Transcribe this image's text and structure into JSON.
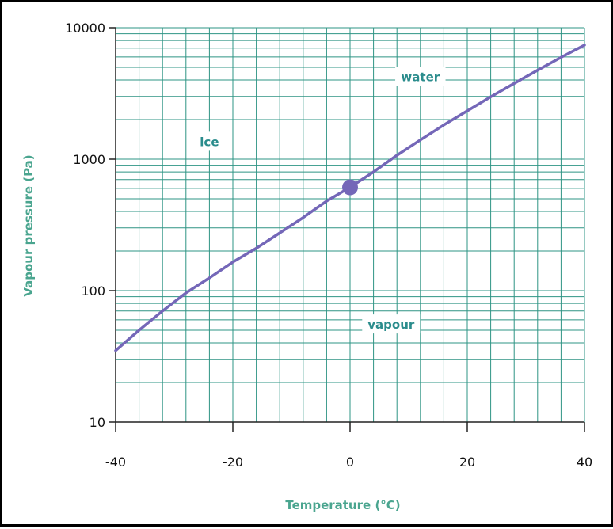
{
  "chart_data": {
    "type": "line",
    "xlabel": "Temperature (°C)",
    "ylabel": "Vapour pressure (Pa)",
    "xlim": [
      -40,
      40
    ],
    "ylim": [
      10,
      10000
    ],
    "y_scale": "log",
    "grid": true,
    "x_ticks": [
      -40,
      -20,
      0,
      20,
      40
    ],
    "x_tick_labels": [
      "-40",
      "-20",
      "0",
      "20",
      "40"
    ],
    "y_ticks": [
      10,
      100,
      1000,
      10000
    ],
    "y_tick_labels": [
      "10",
      "100",
      "1000",
      "10000"
    ],
    "series": [
      {
        "x": [
          -40,
          -36,
          -32,
          -28,
          -24,
          -20,
          -16,
          -12,
          -8,
          -4,
          0,
          4,
          8,
          12,
          16,
          20,
          24,
          28,
          32,
          36,
          40
        ],
        "y": [
          35,
          50,
          70,
          96,
          125,
          165,
          210,
          275,
          360,
          480,
          611,
          800,
          1070,
          1400,
          1820,
          2330,
          2980,
          3770,
          4750,
          5950,
          7380
        ]
      }
    ],
    "point": {
      "x": 0,
      "y": 611
    },
    "annotations": [
      {
        "text": "water",
        "x": 12,
        "y": 4200
      },
      {
        "text": "ice",
        "x": -24,
        "y": 1350
      },
      {
        "text": "vapour",
        "x": 7,
        "y": 55
      }
    ],
    "colors": {
      "curve": "#7467b8",
      "point": "#7467b8",
      "grid": "#2e9484",
      "axis_title": "#4aa58f",
      "label": "#2a8c8c"
    }
  }
}
